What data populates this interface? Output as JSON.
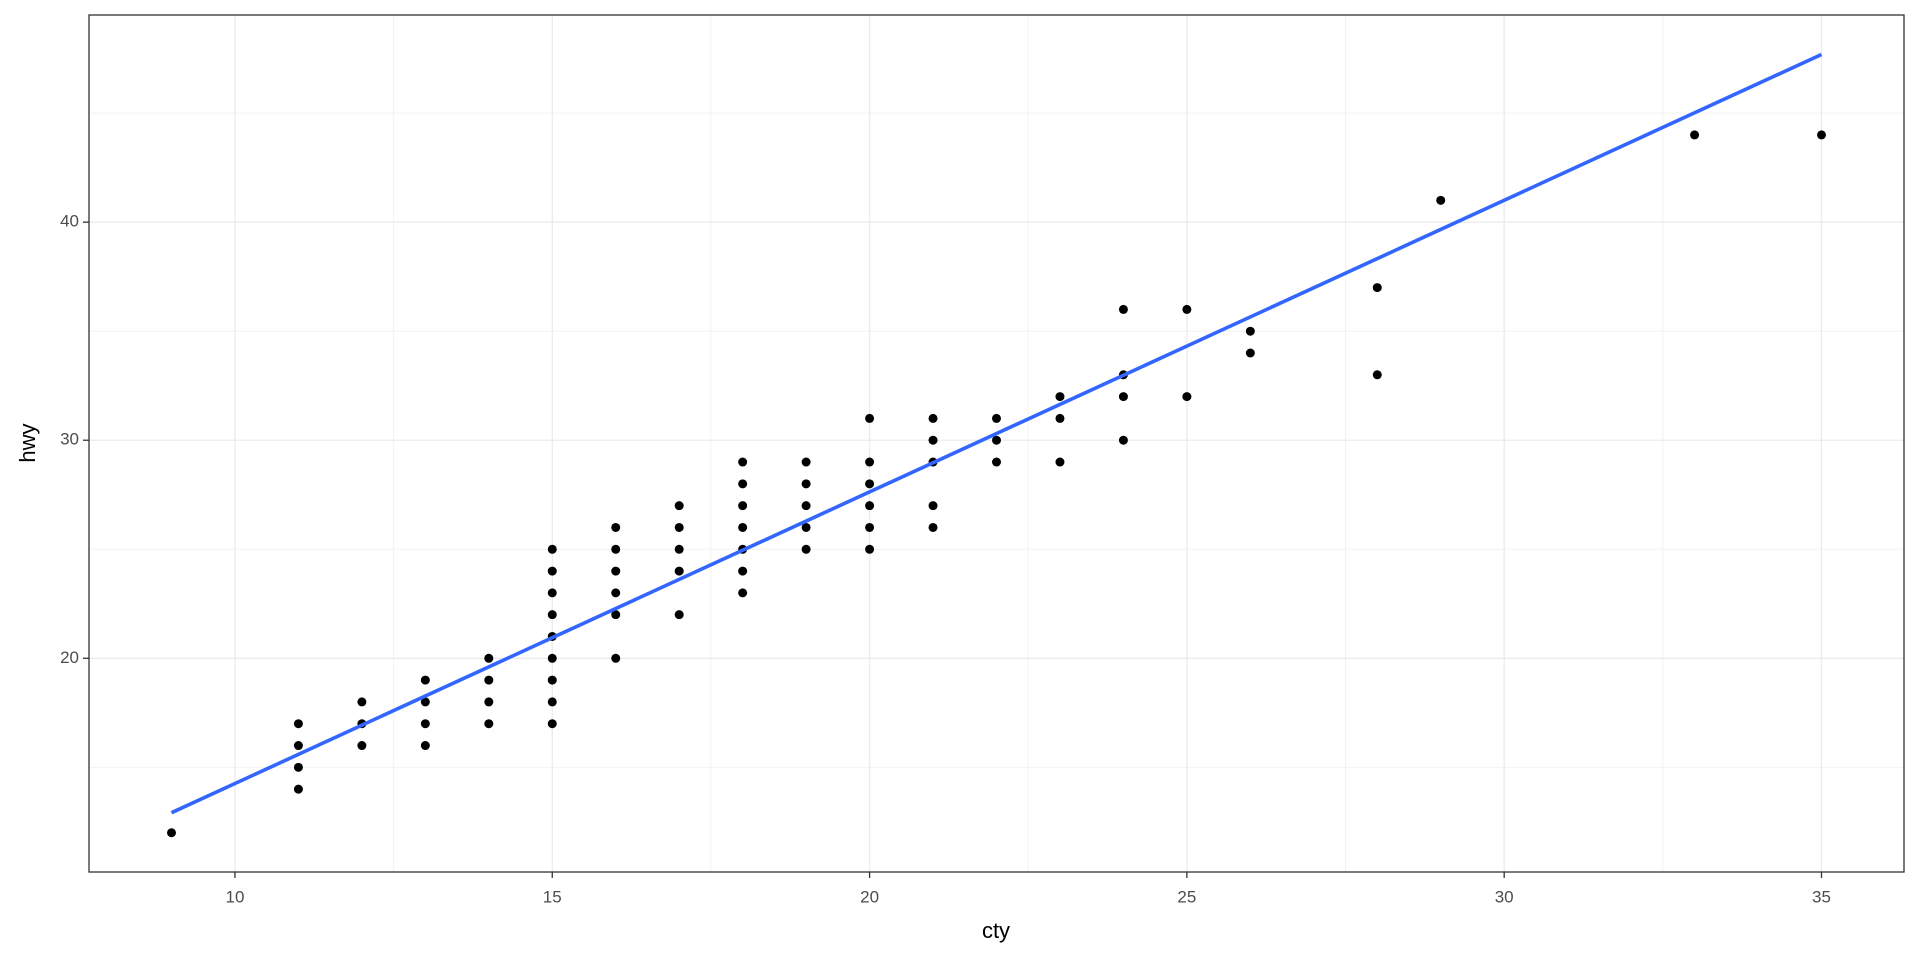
{
  "chart_data": {
    "type": "scatter",
    "x_label": "cty",
    "y_label": "hwy",
    "x": [
      9,
      11,
      11,
      11,
      11,
      12,
      12,
      12,
      13,
      13,
      13,
      13,
      14,
      14,
      14,
      14,
      15,
      15,
      15,
      15,
      15,
      15,
      15,
      15,
      15,
      16,
      16,
      16,
      16,
      16,
      16,
      17,
      17,
      17,
      17,
      17,
      18,
      18,
      18,
      18,
      18,
      18,
      18,
      19,
      19,
      19,
      19,
      19,
      20,
      20,
      20,
      20,
      20,
      20,
      21,
      21,
      21,
      21,
      21,
      22,
      22,
      22,
      23,
      23,
      23,
      24,
      24,
      24,
      24,
      25,
      25,
      26,
      26,
      28,
      28,
      29,
      33,
      35
    ],
    "y": [
      12,
      14,
      15,
      16,
      17,
      16,
      17,
      18,
      16,
      17,
      18,
      19,
      17,
      18,
      19,
      20,
      17,
      18,
      19,
      20,
      21,
      22,
      23,
      24,
      25,
      20,
      22,
      23,
      24,
      25,
      26,
      22,
      24,
      25,
      26,
      27,
      23,
      24,
      25,
      26,
      27,
      28,
      29,
      25,
      26,
      27,
      28,
      29,
      25,
      26,
      27,
      28,
      29,
      31,
      26,
      27,
      29,
      30,
      31,
      29,
      30,
      31,
      29,
      31,
      32,
      30,
      32,
      33,
      36,
      32,
      36,
      34,
      35,
      33,
      37,
      41,
      44,
      44
    ],
    "color": "#000000",
    "trend_line": {
      "x": [
        9,
        35
      ],
      "y": [
        12.92,
        47.69
      ],
      "color": "#3366FF"
    },
    "xlim": [
      7.7,
      36.3
    ],
    "ylim": [
      10.2,
      49.5
    ],
    "xticks": [
      10,
      15,
      20,
      25,
      30,
      35
    ],
    "yticks": [
      20,
      30,
      40
    ],
    "xminor": [
      7.5,
      12.5,
      17.5,
      22.5,
      27.5,
      32.5
    ],
    "yminor": [
      15,
      25,
      35,
      45
    ],
    "grid": true
  }
}
